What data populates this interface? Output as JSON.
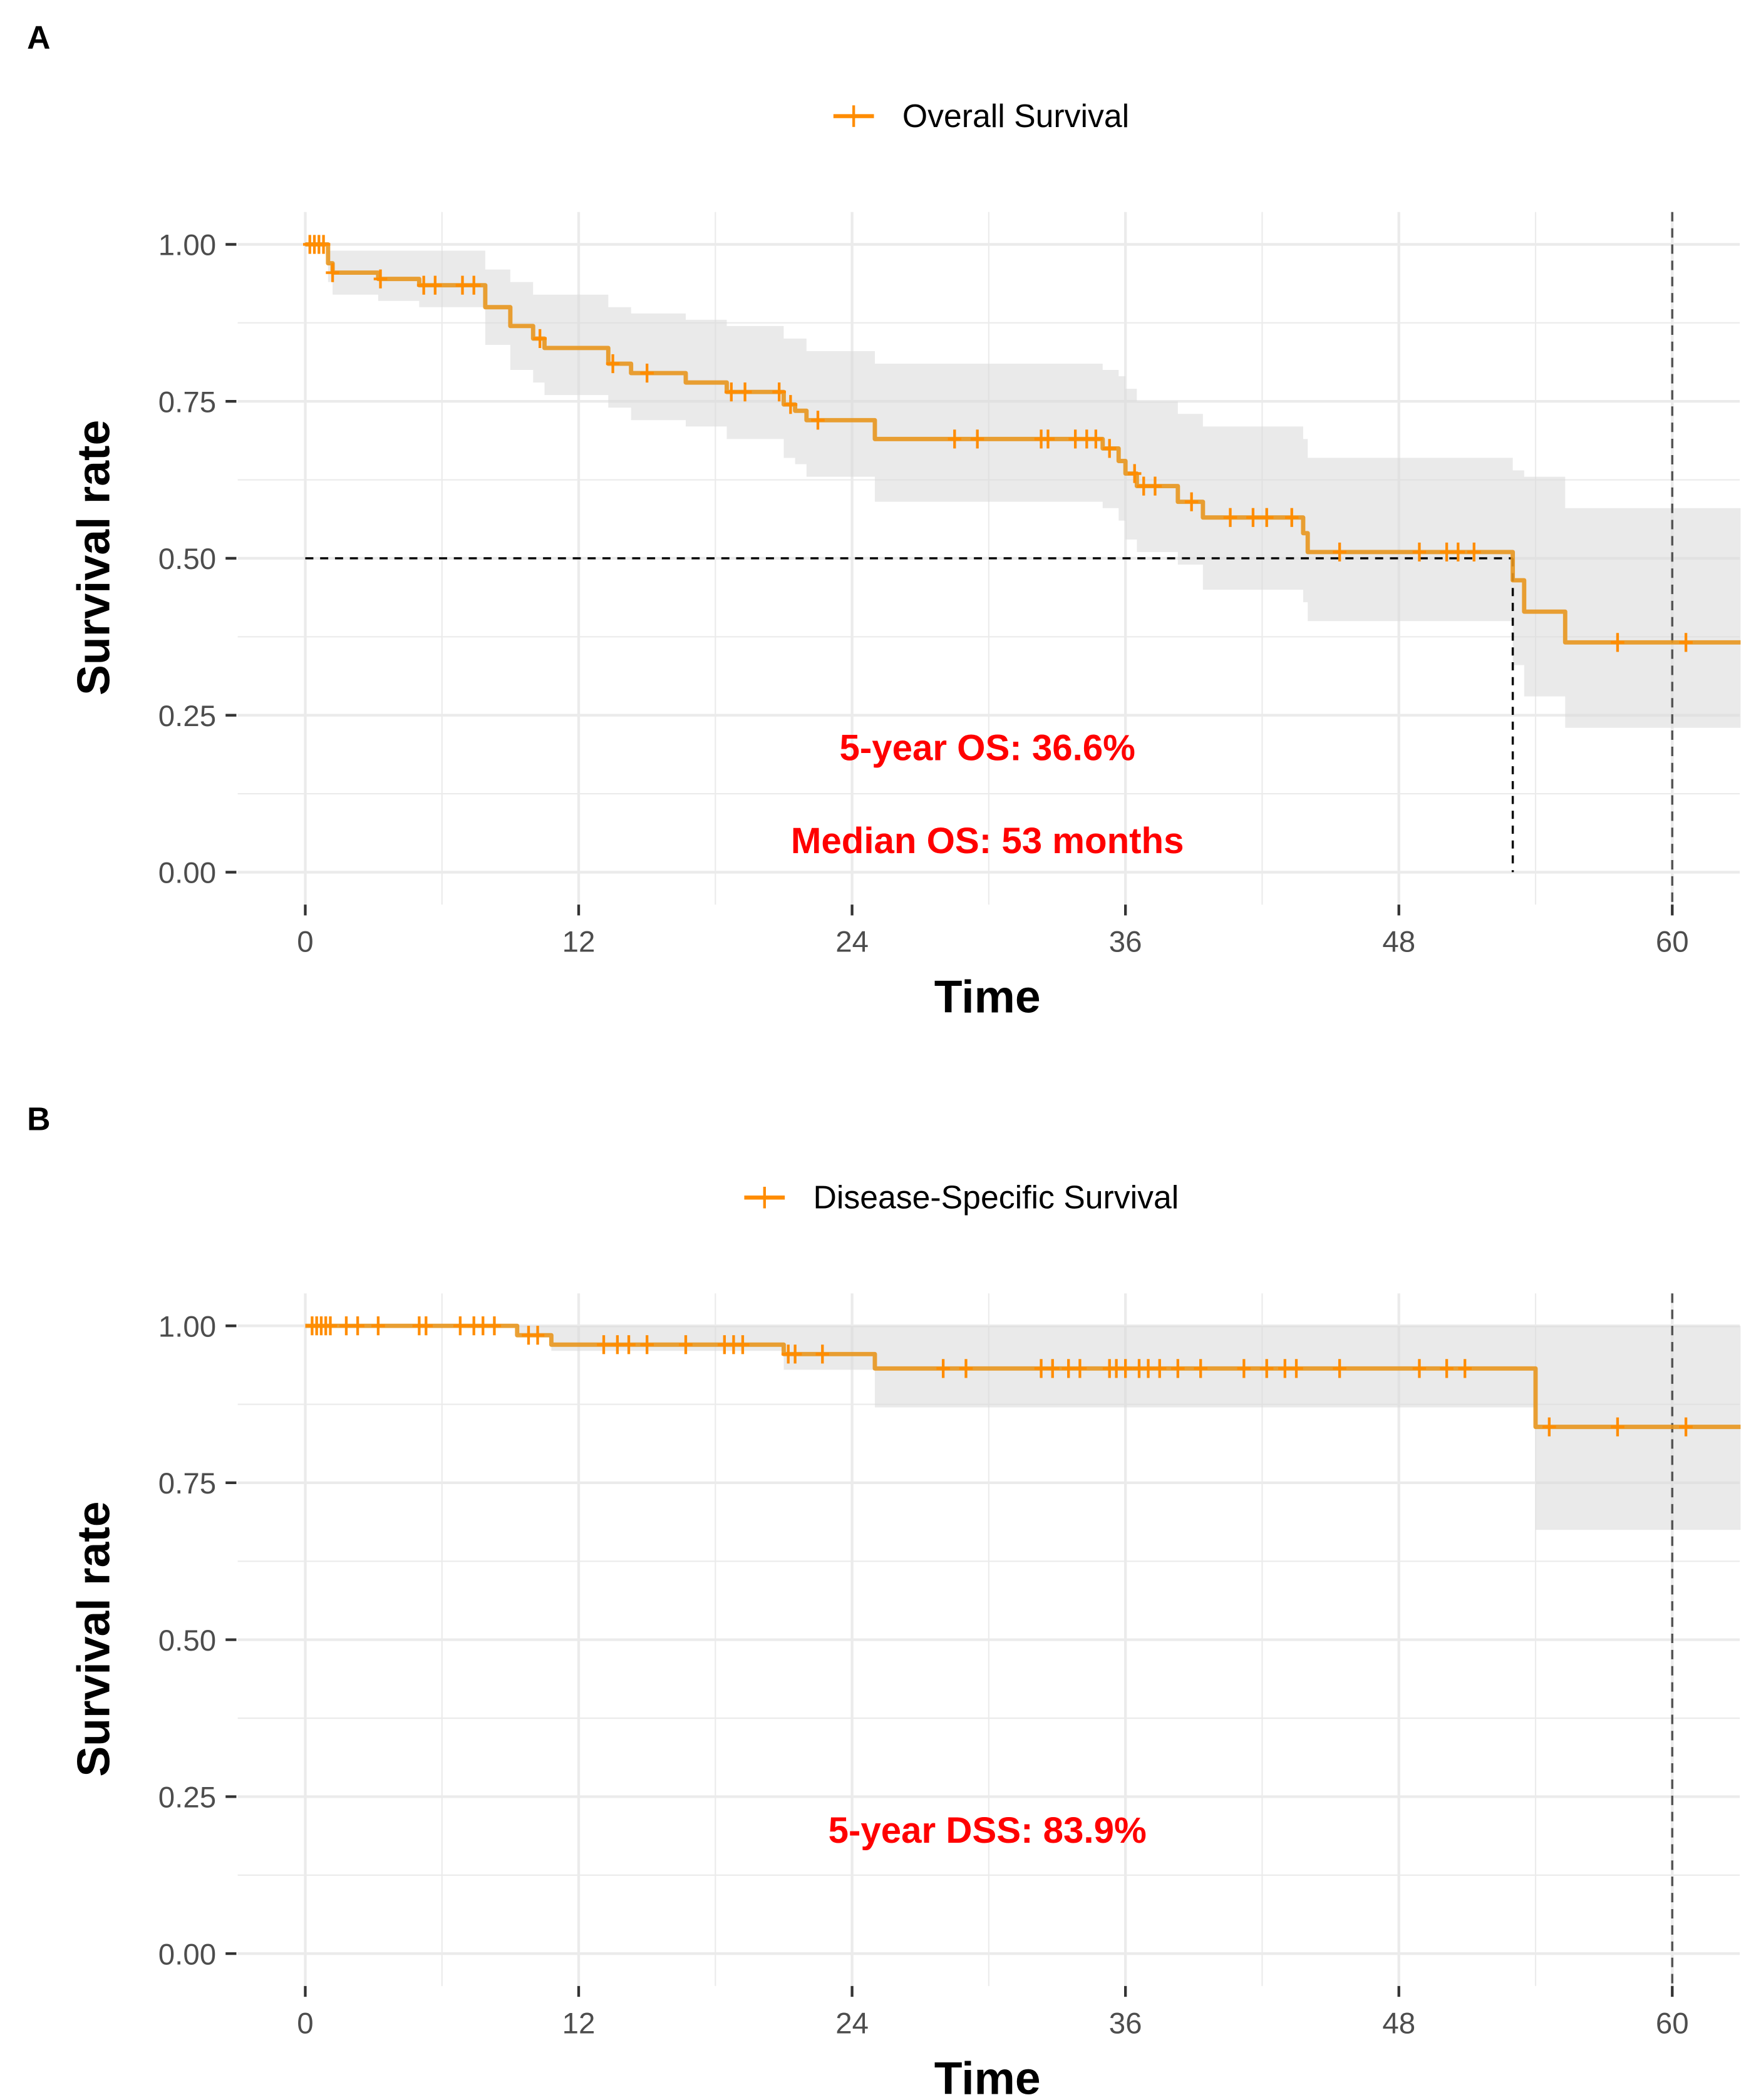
{
  "chart_data": [
    {
      "type": "line",
      "panel_label": "A",
      "legend": "Overall Survival",
      "legend_placement": "top",
      "xlabel": "Time",
      "ylabel": "Survival rate",
      "xticks": [
        "0",
        "12",
        "24",
        "36",
        "48",
        "60"
      ],
      "yticks": [
        "0.00",
        "0.25",
        "0.50",
        "0.75",
        "1.00"
      ],
      "xlim": [
        -3,
        63
      ],
      "ylim": [
        0,
        1
      ],
      "color": "#FF8C00",
      "step_times": [
        0,
        1.0,
        1.2,
        3.2,
        5.0,
        7.9,
        9.0,
        10.0,
        10.5,
        13.3,
        14.3,
        16.7,
        18.5,
        21.0,
        21.5,
        22.0,
        25.0,
        35.0,
        35.7,
        36.0,
        36.5,
        38.3,
        39.4,
        43.8,
        44.0,
        53.0,
        53.5,
        55.3
      ],
      "survival": [
        1.0,
        0.97,
        0.955,
        0.945,
        0.935,
        0.9,
        0.87,
        0.85,
        0.835,
        0.81,
        0.795,
        0.78,
        0.765,
        0.745,
        0.735,
        0.72,
        0.69,
        0.675,
        0.655,
        0.635,
        0.615,
        0.59,
        0.565,
        0.54,
        0.51,
        0.465,
        0.415,
        0.366
      ],
      "upper": [
        1.0,
        0.99,
        0.99,
        0.99,
        0.99,
        0.96,
        0.94,
        0.92,
        0.92,
        0.9,
        0.89,
        0.88,
        0.87,
        0.85,
        0.85,
        0.83,
        0.81,
        0.8,
        0.79,
        0.77,
        0.75,
        0.73,
        0.71,
        0.69,
        0.66,
        0.64,
        0.63,
        0.58
      ],
      "lower": [
        1.0,
        0.94,
        0.92,
        0.91,
        0.9,
        0.84,
        0.8,
        0.78,
        0.76,
        0.74,
        0.72,
        0.71,
        0.69,
        0.66,
        0.65,
        0.63,
        0.59,
        0.58,
        0.56,
        0.53,
        0.51,
        0.49,
        0.45,
        0.43,
        0.4,
        0.33,
        0.28,
        0.23
      ],
      "censor_times": [
        0.2,
        0.4,
        0.6,
        0.8,
        1.2,
        3.3,
        5.2,
        5.7,
        6.9,
        7.4,
        10.3,
        13.5,
        15.0,
        18.7,
        19.3,
        20.8,
        21.3,
        22.5,
        28.5,
        29.5,
        32.3,
        32.6,
        33.8,
        34.3,
        34.7,
        35.3,
        36.4,
        36.8,
        37.3,
        38.9,
        40.6,
        41.6,
        42.2,
        43.3,
        45.4,
        48.9,
        50.1,
        50.6,
        51.3,
        57.6,
        60.6
      ],
      "median_time": 53,
      "reference_time": 60,
      "annotations": [
        "5-year OS: 36.6%",
        "Median OS: 53 months"
      ]
    },
    {
      "type": "line",
      "panel_label": "B",
      "legend": "Disease-Specific Survival",
      "legend_placement": "top",
      "xlabel": "Time",
      "ylabel": "Survival rate",
      "xticks": [
        "0",
        "12",
        "24",
        "36",
        "48",
        "60"
      ],
      "yticks": [
        "0.00",
        "0.25",
        "0.50",
        "0.75",
        "1.00"
      ],
      "xlim": [
        -3,
        63
      ],
      "ylim": [
        0,
        1
      ],
      "color": "#FF8C00",
      "step_times": [
        0,
        9.3,
        10.8,
        21.0,
        25.0,
        54.0
      ],
      "survival": [
        1.0,
        0.985,
        0.97,
        0.955,
        0.932,
        0.839
      ],
      "upper": [
        1.0,
        1.0,
        1.0,
        1.0,
        1.0,
        1.0
      ],
      "lower": [
        1.0,
        0.985,
        0.96,
        0.93,
        0.87,
        0.675
      ],
      "censor_times": [
        0.3,
        0.5,
        0.7,
        0.9,
        1.1,
        1.8,
        2.3,
        3.2,
        5.0,
        5.3,
        6.8,
        7.4,
        7.8,
        8.3,
        9.8,
        10.2,
        13.1,
        13.7,
        14.2,
        15.0,
        16.7,
        18.4,
        18.8,
        19.2,
        21.2,
        21.5,
        22.7,
        28.0,
        29.0,
        32.3,
        32.8,
        33.5,
        34.0,
        35.3,
        35.6,
        36.0,
        36.6,
        37.0,
        37.5,
        38.3,
        39.3,
        41.2,
        42.2,
        43.0,
        43.5,
        45.4,
        48.9,
        50.1,
        50.9,
        54.6,
        57.6,
        60.6
      ],
      "reference_time": 60,
      "annotations": [
        "5-year DSS: 83.9%"
      ]
    }
  ]
}
